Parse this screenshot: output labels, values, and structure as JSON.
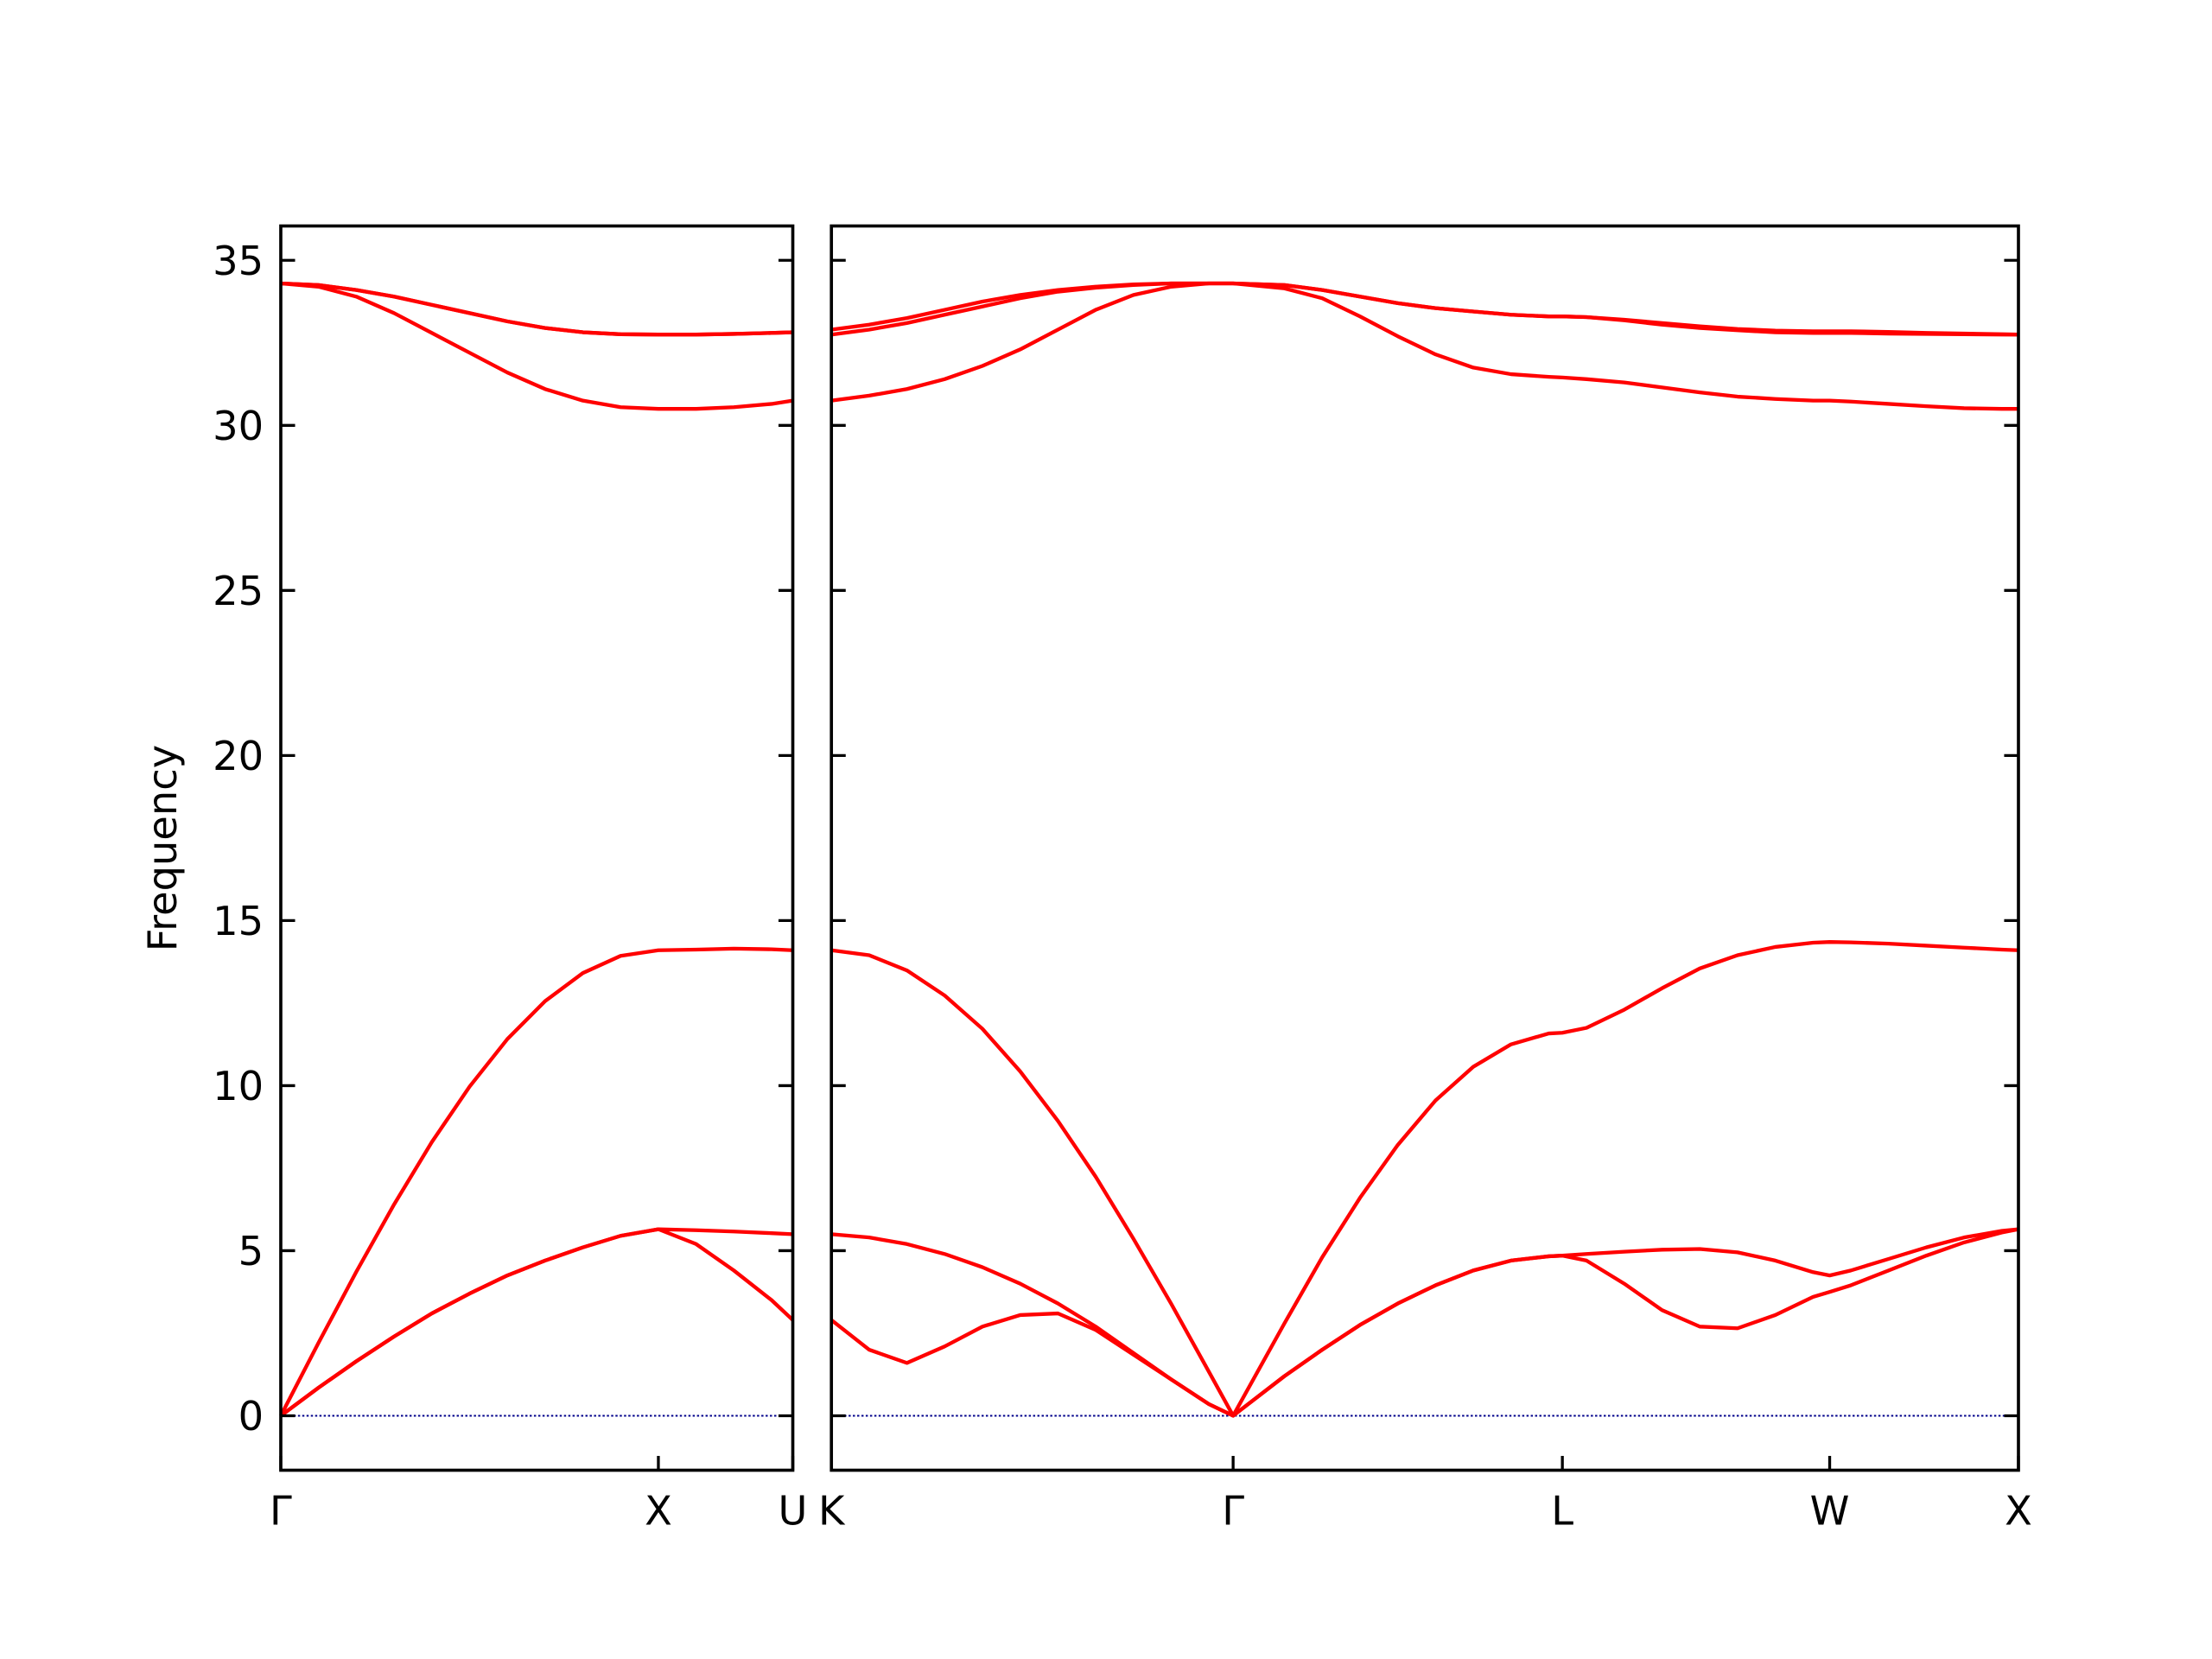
{
  "chart_data": [
    {
      "type": "line",
      "ylabel": "Frequency",
      "color": "#ff0000",
      "x": [
        0,
        0.1,
        0.2,
        0.3,
        0.4,
        0.5,
        0.6,
        0.7,
        0.8,
        0.9,
        1.0,
        1.1,
        1.2,
        1.3,
        1.356
      ],
      "series": [
        {
          "values": [
            0,
            2.21,
            4.36,
            6.4,
            8.29,
            9.97,
            11.41,
            12.56,
            13.41,
            13.93,
            14.1,
            14.12,
            14.15,
            14.13,
            14.1
          ]
        },
        {
          "values": [
            0,
            0.85,
            1.65,
            2.4,
            3.1,
            3.7,
            4.25,
            4.7,
            5.1,
            5.45,
            5.65,
            5.62,
            5.58,
            5.53,
            5.5
          ]
        },
        {
          "values": [
            0,
            0.85,
            1.65,
            2.4,
            3.1,
            3.7,
            4.25,
            4.7,
            5.1,
            5.45,
            5.65,
            5.2,
            4.4,
            3.5,
            2.9
          ]
        },
        {
          "values": [
            34.3,
            34.2,
            33.9,
            33.4,
            32.8,
            32.2,
            31.6,
            31.1,
            30.75,
            30.55,
            30.5,
            30.5,
            30.55,
            30.65,
            30.75
          ]
        },
        {
          "values": [
            34.3,
            34.25,
            34.1,
            33.9,
            33.65,
            33.4,
            33.15,
            32.95,
            32.82,
            32.76,
            32.75,
            32.75,
            32.77,
            32.8,
            32.82
          ]
        },
        {
          "values": [
            34.3,
            34.25,
            34.1,
            33.9,
            33.65,
            33.4,
            33.15,
            32.95,
            32.82,
            32.76,
            32.75,
            32.75,
            32.77,
            32.8,
            32.82
          ]
        }
      ],
      "xlim": [
        0,
        1.356
      ],
      "xticks": [
        {
          "value": 0,
          "label": "Γ"
        },
        {
          "value": 1.0,
          "label": "X"
        },
        {
          "value": 1.356,
          "label": "U"
        }
      ],
      "ylim": [
        -1.65,
        36.04
      ],
      "yticks": [
        0,
        5,
        10,
        15,
        20,
        25,
        30,
        35
      ],
      "ytick_labels": true,
      "hline": 0,
      "hline_color": "#00008b"
    },
    {
      "type": "line",
      "color": "#ff0000",
      "x": [
        0,
        0.1,
        0.2,
        0.3,
        0.4,
        0.5,
        0.6,
        0.7,
        0.8,
        0.9,
        1.0,
        1.064,
        1.2,
        1.3,
        1.4,
        1.5,
        1.6,
        1.7,
        1.8,
        1.9,
        1.936,
        2.0,
        2.1,
        2.2,
        2.3,
        2.4,
        2.5,
        2.6,
        2.644,
        2.7,
        2.8,
        2.9,
        3.0,
        3.1,
        3.144
      ],
      "series": [
        {
          "values": [
            14.1,
            13.95,
            13.49,
            12.73,
            11.72,
            10.43,
            8.93,
            7.24,
            5.36,
            3.39,
            1.33,
            0,
            2.8,
            4.8,
            6.6,
            8.2,
            9.55,
            10.57,
            11.25,
            11.58,
            11.6,
            11.75,
            12.3,
            12.95,
            13.55,
            13.95,
            14.2,
            14.33,
            14.35,
            14.34,
            14.3,
            14.24,
            14.18,
            14.12,
            14.1
          ]
        },
        {
          "values": [
            5.5,
            5.4,
            5.2,
            4.9,
            4.5,
            4.0,
            3.4,
            2.7,
            1.9,
            1.1,
            0.35,
            0,
            1.2,
            2.0,
            2.75,
            3.4,
            3.95,
            4.4,
            4.7,
            4.83,
            4.85,
            4.9,
            4.97,
            5.03,
            5.05,
            4.95,
            4.7,
            4.35,
            4.25,
            4.4,
            4.75,
            5.1,
            5.4,
            5.6,
            5.65
          ]
        },
        {
          "values": [
            2.9,
            2.0,
            1.6,
            2.1,
            2.7,
            3.05,
            3.1,
            2.6,
            1.85,
            1.1,
            0.35,
            0,
            1.2,
            2.0,
            2.75,
            3.4,
            3.95,
            4.4,
            4.7,
            4.83,
            4.85,
            4.7,
            4.0,
            3.2,
            2.7,
            2.65,
            3.05,
            3.6,
            3.75,
            3.95,
            4.4,
            4.85,
            5.25,
            5.55,
            5.65
          ]
        },
        {
          "values": [
            30.75,
            30.9,
            31.1,
            31.4,
            31.8,
            32.3,
            32.9,
            33.5,
            33.95,
            34.2,
            34.3,
            34.3,
            34.15,
            33.85,
            33.3,
            32.7,
            32.15,
            31.75,
            31.55,
            31.47,
            31.45,
            31.4,
            31.3,
            31.15,
            31.0,
            30.87,
            30.8,
            30.75,
            30.75,
            30.72,
            30.65,
            30.58,
            30.52,
            30.5,
            30.5
          ]
        },
        {
          "values": [
            32.9,
            33.05,
            33.25,
            33.5,
            33.75,
            33.95,
            34.1,
            34.2,
            34.27,
            34.3,
            34.3,
            34.3,
            34.25,
            34.1,
            33.9,
            33.7,
            33.55,
            33.45,
            33.35,
            33.3,
            33.3,
            33.28,
            33.2,
            33.1,
            33.0,
            32.92,
            32.87,
            32.85,
            32.85,
            32.85,
            32.83,
            32.8,
            32.78,
            32.76,
            32.75
          ]
        },
        {
          "values": [
            32.75,
            32.9,
            33.1,
            33.35,
            33.6,
            33.85,
            34.05,
            34.17,
            34.25,
            34.3,
            34.3,
            34.3,
            34.25,
            34.1,
            33.9,
            33.7,
            33.55,
            33.45,
            33.35,
            33.3,
            33.3,
            33.28,
            33.18,
            33.05,
            32.95,
            32.88,
            32.82,
            32.8,
            32.8,
            32.8,
            32.78,
            32.77,
            32.76,
            32.75,
            32.75
          ]
        }
      ],
      "xlim": [
        0,
        3.144
      ],
      "xticks": [
        {
          "value": 0,
          "label": "K"
        },
        {
          "value": 1.064,
          "label": "Γ"
        },
        {
          "value": 1.936,
          "label": "L"
        },
        {
          "value": 2.644,
          "label": "W"
        },
        {
          "value": 3.144,
          "label": "X"
        }
      ],
      "ylim": [
        -1.65,
        36.04
      ],
      "yticks": [
        0,
        5,
        10,
        15,
        20,
        25,
        30,
        35
      ],
      "ytick_labels": false,
      "hline": 0,
      "hline_color": "#00008b"
    }
  ]
}
